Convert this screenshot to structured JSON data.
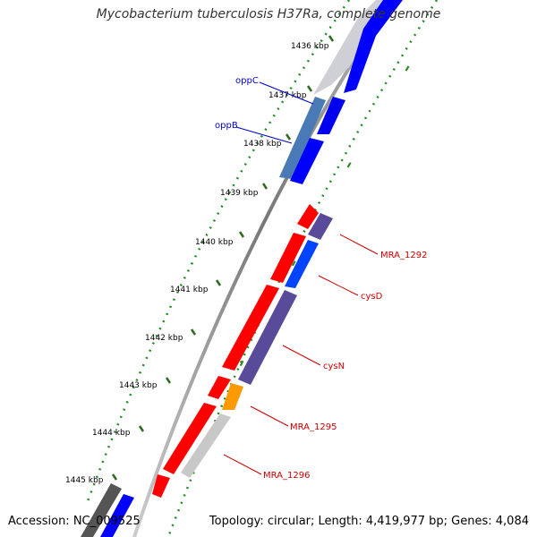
{
  "title": "Mycobacterium tuberculosis H37Ra, complete genome",
  "footer": {
    "accession": "Accession: NC_009525",
    "summary": "Topology: circular; Length: 4,419,977 bp; Genes: 4,084"
  },
  "ticks": [
    {
      "label": "1436 kbp"
    },
    {
      "label": "1437 kbp"
    },
    {
      "label": "1438 kbp"
    },
    {
      "label": "1439 kbp"
    },
    {
      "label": "1440 kbp"
    },
    {
      "label": "1441 kbp"
    },
    {
      "label": "1442 kbp"
    },
    {
      "label": "1443 kbp"
    },
    {
      "label": "1444 kbp"
    },
    {
      "label": "1445 kbp"
    }
  ],
  "gene_labels": [
    {
      "name": "oppC",
      "color": "#0000cc"
    },
    {
      "name": "oppB",
      "color": "#0000cc"
    },
    {
      "name": "MRA_1292",
      "color": "#cc0000"
    },
    {
      "name": "cysD",
      "color": "#cc0000"
    },
    {
      "name": "cysN",
      "color": "#cc0000"
    },
    {
      "name": "MRA_1295",
      "color": "#cc0000"
    },
    {
      "name": "MRA_1296",
      "color": "#cc0000"
    }
  ],
  "colors": {
    "forward_strand": "#ff0000",
    "reverse_strand": "#0000ff",
    "purple_feature": "#5a4a9a",
    "orange_feature": "#ff9900",
    "gray_feature": "#c8c8c8",
    "dark_gray_feature": "#555555",
    "steel_blue_feature": "#4a7ab5",
    "gc_skew_dots": "#228b22",
    "backbone": "#777777"
  }
}
